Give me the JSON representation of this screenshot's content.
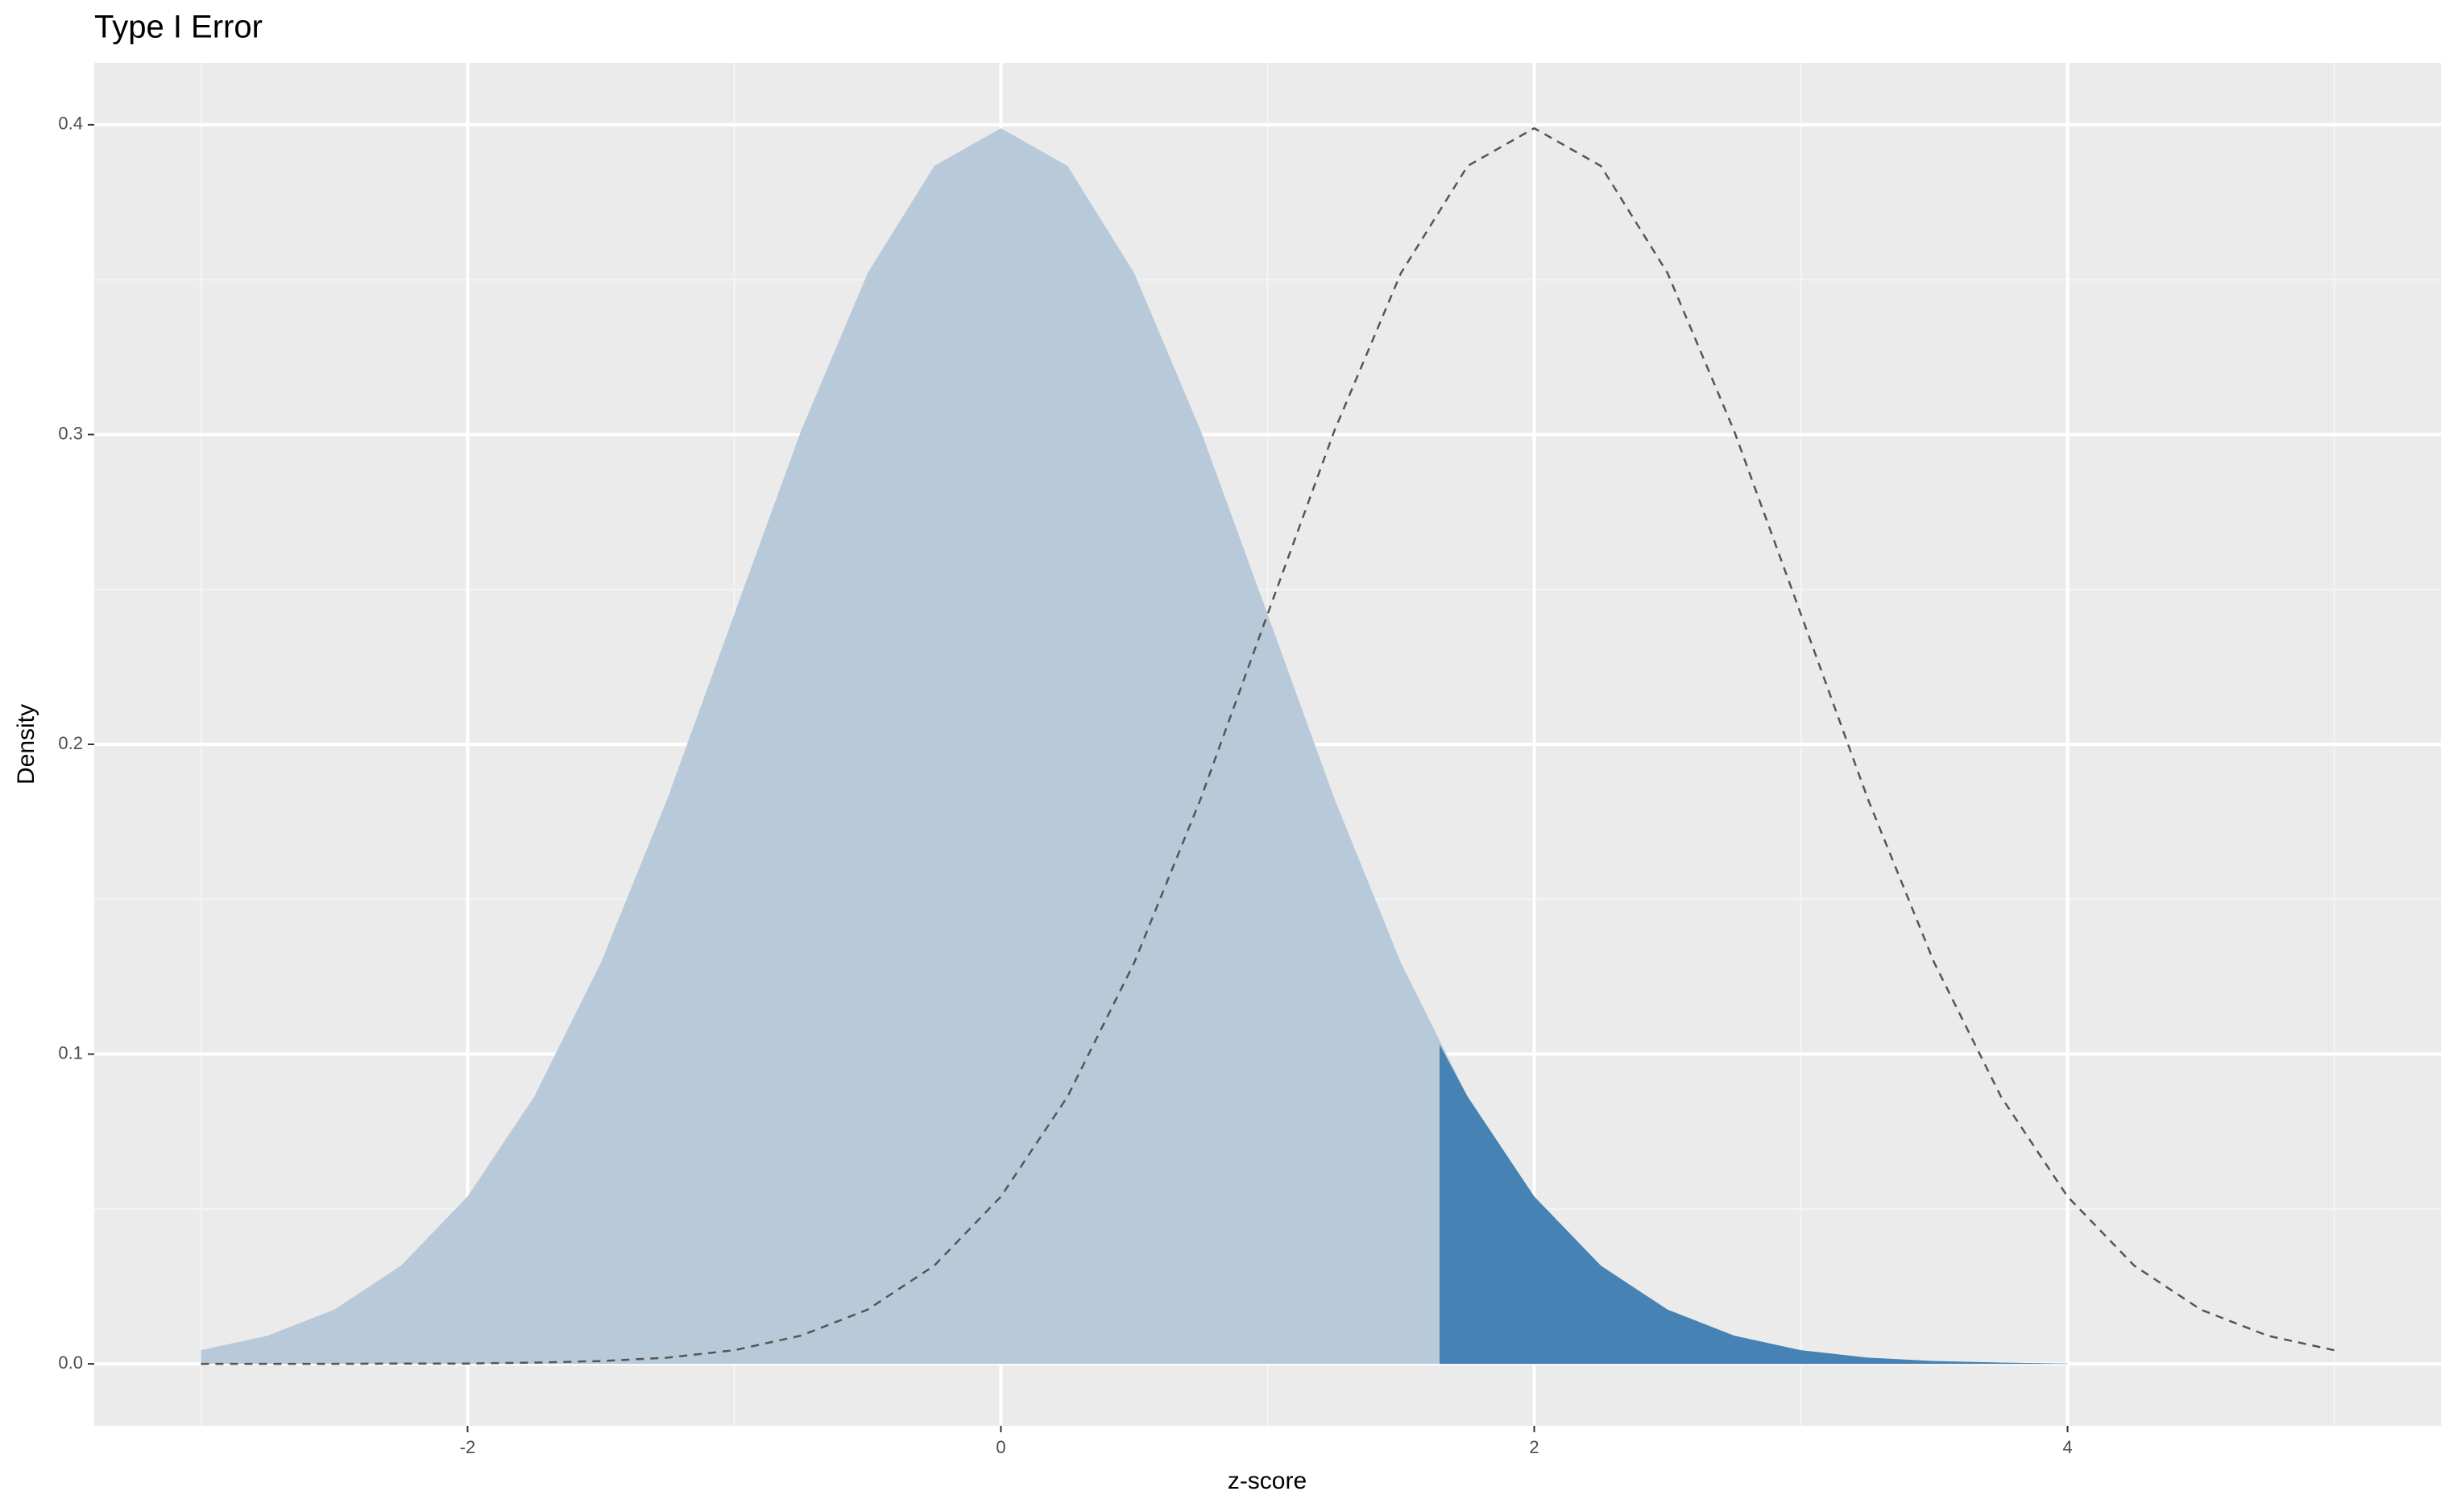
{
  "chart_data": {
    "type": "density",
    "title": "Type I Error",
    "x_label": "z-score",
    "y_label": "Density",
    "xlim": [
      -3.4,
      5.4
    ],
    "ylim": [
      -0.02,
      0.42
    ],
    "xticks": [
      -2,
      0,
      2,
      4
    ],
    "xminor": [
      -3,
      -1,
      1,
      3,
      5
    ],
    "yticks": [
      {
        "value": 0,
        "label": "0.0"
      },
      {
        "value": 0.1,
        "label": "0.1"
      },
      {
        "value": 0.2,
        "label": "0.2"
      },
      {
        "value": 0.3,
        "label": "0.3"
      },
      {
        "value": 0.4,
        "label": "0.4"
      }
    ],
    "yminor": [
      0.05,
      0.15,
      0.25,
      0.35
    ],
    "grid": true,
    "series": [
      {
        "kind": "area",
        "color": "#b8cad9",
        "x": [
          -3,
          -2.75,
          -2.5,
          -2.25,
          -2,
          -1.75,
          -1.5,
          -1.25,
          -1,
          -0.75,
          -0.5,
          -0.25,
          0,
          0.25,
          0.5,
          0.75,
          1,
          1.25,
          1.5,
          1.75,
          2,
          2.25,
          2.5,
          2.75,
          3,
          3.25,
          3.5,
          3.75,
          4
        ],
        "values": [
          0.0044,
          0.0091,
          0.0175,
          0.0317,
          0.054,
          0.0863,
          0.1295,
          0.1826,
          0.242,
          0.3011,
          0.3521,
          0.3867,
          0.3989,
          0.3867,
          0.3521,
          0.3011,
          0.242,
          0.1826,
          0.1295,
          0.0863,
          0.054,
          0.0317,
          0.0175,
          0.0091,
          0.0044,
          0.002,
          0.0009,
          0.0004,
          0.0001
        ]
      },
      {
        "kind": "area",
        "color": "#4682b4",
        "x": [
          1.645,
          1.75,
          2,
          2.25,
          2.5,
          2.75,
          3,
          3.25,
          3.5,
          3.75,
          4
        ],
        "values": [
          0.1031,
          0.0863,
          0.054,
          0.0317,
          0.0175,
          0.0091,
          0.0044,
          0.002,
          0.0009,
          0.0004,
          0.0001
        ]
      },
      {
        "kind": "line",
        "color": "#555555",
        "dashed": true,
        "x": [
          -3,
          -2.75,
          -2.5,
          -2.25,
          -2,
          -1.75,
          -1.5,
          -1.25,
          -1,
          -0.75,
          -0.5,
          -0.25,
          0,
          0.25,
          0.5,
          0.75,
          1,
          1.25,
          1.5,
          1.75,
          2,
          2.25,
          2.5,
          2.75,
          3,
          3.25,
          3.5,
          3.75,
          4,
          4.25,
          4.5,
          4.75,
          5
        ],
        "values": [
          0,
          0,
          0,
          0.0001,
          0.0001,
          0.0004,
          0.0009,
          0.002,
          0.0044,
          0.0091,
          0.0175,
          0.0317,
          0.054,
          0.0863,
          0.1295,
          0.1826,
          0.242,
          0.3011,
          0.3521,
          0.3867,
          0.3989,
          0.3867,
          0.3521,
          0.3011,
          0.242,
          0.1826,
          0.1295,
          0.0863,
          0.054,
          0.0317,
          0.0175,
          0.0091,
          0.0044
        ]
      }
    ]
  }
}
